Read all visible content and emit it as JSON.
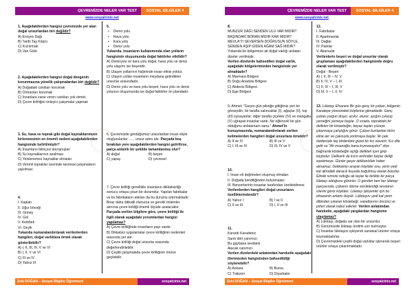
{
  "header": {
    "title": "ÇEVREMİZDE NELER VAR TEST",
    "subject": "SOSYAL BİLGİLER 4",
    "url": "www.sosyalcinix.net"
  },
  "footer": {
    "author": "Zeki DOĞAN – Sosyal Bilgiler Öğretmeni",
    "site": "sosyalcinix.net"
  },
  "colors": {
    "purple": "#8e0f8a",
    "orange": "#f47a20"
  },
  "pages": [
    {
      "questions": [
        {
          "stem": [
            {
              "t": "1. Aşağıdakilerden hangisi çevremizde yer alan doğal unsurlardan biri ",
              "s": "b"
            },
            {
              "t": "değildir?",
              "s": "u"
            }
          ],
          "options": [
            "A) Erciyes Dağı",
            "B) Tarihi Taş Köprü",
            "C) Kızılırmak",
            "D) Van Gölü"
          ]
        },
        {
          "stem": [
            {
              "t": "2. Aşağıdakilerden hangisi doğal dengenin korunmasına yönelik çalışmalardan biri ",
              "s": "b"
            },
            {
              "t": "değildir?",
              "s": "u"
            }
          ],
          "options": [
            "A) Doğadaki canlıları korumak",
            "B) Ormanları korumak",
            "C) İnsanlara zarar veren canlıları yok etmek",
            "D) Çevre kirliliğini önleyici çalışmalar yapmak"
          ]
        },
        {
          "stem": [
            {
              "t": "3. Su, hava ve toprak gibi doğal kaynaklarımızın kirlenmesinin en önemli nedeni aşağıdakilerden hangisinde belirtilmiştir?",
              "s": "b"
            }
          ],
          "options": [
            "A) İnsanların bilinçsiz davranışları",
            "B) Su kaynaklarının azalması",
            "C) Yenilenemez kaynaklar olmaları",
            "D) Verimli topraklar üzerinde tarımsal çalışmaların yapılması"
          ]
        },
        {
          "stem": [
            {
              "t": "4.",
              "s": "b"
            }
          ],
          "pre": [
            "I. Kaplan",
            "II. Uğur böceği",
            "III. Güneş",
            "IV. Göl",
            "V. Kelebek",
            "VI. Geyik"
          ],
          "stem2": [
            {
              "t": "Yukarıda numaralandırılarak verilenlerden hangileri, doğal varlıklara örnek olarak gösterilebilir?",
              "s": "b"
            }
          ],
          "options": [
            "A) I, II, III, IV, V ve VI",
            "B) I, II, V ve VI",
            "C) III ve IV",
            "D) Yalnız III"
          ]
        },
        {
          "stem": [
            {
              "t": "5.",
              "s": "b"
            }
          ],
          "bullets": [
            "Demir yolu",
            "Hava yolu",
            "Kara yolu",
            "Deniz yolu"
          ],
          "stem2": [
            {
              "t": "Yukarıda, insanların kullanımında olan yolların hangisinin oluşumunda doğal faktörler etkilidir?",
              "s": "b"
            }
          ],
          "options": [
            "A) Demiryolu ve kara yolu doğal; hava yolu ve deniz yolu ulaşımı ise beşeridir.",
            "B) Ulaşım yollarının hiçbirinde insan etkisi yoktur.",
            "C) Ulaşım yolları insanların meydana getirdikleri unsurlar arasındadır.",
            "D) Demir yolu ve kara yolu beşeri; hava yolu ve deniz yolunun oluşumunda ise doğal faktörler ön plandadır."
          ]
        },
        {
          "stem": [
            {
              "t": "6. Çevremizde gördüğümüz unsurlardan insan eliyle oluşturulanlar ...... unsur adını alır. ",
              "s": ""
            },
            {
              "t": "Parçada boş bırakılan yere aşağıdakilerden hangisi getirilirse, parça anlamlı bir şekilde tamamlanmış olur?",
              "s": "b"
            }
          ],
          "grid": true,
          "options": [
            "A) doğal",
            "B) beşeri",
            "C) yapay",
            "D) çevresel"
          ]
        },
        {
          "stem": [
            {
              "t": "7. Çevre kirliliği genellikle insanların dikkatsizliği sonucu ortaya çıkan bir durumdur. Yapılan fabrikalar ve bu fabrikaların atıkları da bu durumu artırmaktadır. Biraz daha dikkatli olunursa ve gerekli önlemler alınırsa çevre kirliliği önemli ölçüde azalacaktır. ",
              "s": ""
            },
            {
              "t": "Parçada verilen bilgilere göre, çevre kirliliği ile ilgili olarak aşağıdaki yorumlardan hangisi ",
              "s": "b"
            },
            {
              "t": "yapılamaz?",
              "s": "u"
            }
          ],
          "options": [
            "A) Çevre kirliliğinde insanların payı vardır.",
            "B) Dikkatsiz uygulamalar çevre kirliliğinin nedenleri arasında yer alır.",
            "C) Çevre kirliliği doğal unsurlar arasında değerlendirilebilir.",
            "D) Çeşitli çalışmalarla çevre kirliliğinin önüne geçilebilir."
          ]
        }
      ]
    },
    {
      "questions": [
        {
          "stem": [
            {
              "t": "8.",
              "s": "b"
            }
          ],
          "pre": [
            "MUNZUR DAĞI SENDEN ULU VAR MIDIR?",
            "BAŞINDAKİ BORAN MIDIR KAR MIDIR?",
            "MEVLA'YI SEVERSEN DOĞRUSUN SÖYLE,",
            "SENDEN AŞIP GİDEN AĞAM SAĞ MIDIR?",
            "Yukarıda bir bölgemize ait doğal varlığı anlatan dizeler verilmiştir."
          ],
          "stem2": [
            {
              "t": "Verilen dizelerde bahsedilen doğal varlık, aşağıdaki bölgelerimizden hangisinde yer almaktadır?",
              "s": "b"
            }
          ],
          "options": [
            "A) Marmara Bölgesi",
            "B) Doğu Anadolu Bölgesi",
            "C) Akdeniz Bölgesi",
            "D) Ege Bölgesi"
          ]
        },
        {
          "stem": [
            {
              "t": "9. Ahmet: \"Geçen gün pikniğe gittiğimiz yeri bir görseydin; bir tarafta salıncaklar (I), ağaçlar (II), top (III) oynayanlar; diğer tarafta çiçekler (IV) ve mangalla (V) uğraşan insanlar vardı. Ne eğlenceli bir gün olduğunu anlatamam sana.\" ",
              "s": ""
            },
            {
              "t": "Ahmet'in konuşmasında, numaralandırılarak verilen kelimelerden hangileri doğal unsurlara örnektir?",
              "s": "b"
            }
          ],
          "grid": true,
          "options": [
            "A) II ve IV",
            "B) III ve V",
            "C) I, III ve IV",
            "D) III, IV ve V"
          ]
        },
        {
          "stem": [
            {
              "t": "10.",
              "s": "b"
            }
          ],
          "pre": [
            "I. İnsan eli değmeden oluşmuş olmaları",
            "II. Doğada kendiliğinden bulunmaları",
            "III. Benzerlerinin insanlar tarafından üretilebilmesi"
          ],
          "stem2": [
            {
              "t": "Verilenlerden hangileri doğal unsurların özelliklerindendir?",
              "s": "b"
            }
          ],
          "grid": true,
          "options": [
            "A) Yalnız I",
            "B) I ve II",
            "C) II ve III",
            "D) I, II ve III"
          ]
        },
        {
          "stem": [
            {
              "t": "11.",
              "s": "b"
            }
          ],
          "pre": [
            "Karardı Karadeniz",
            "Sardı dört yanımızı",
            "Bu gaybana sevdalık",
            "Alacak canımızı"
          ],
          "stem2": [
            {
              "t": "Verilen dizelerdeki anlatımdan hareketle aşağıdaki illerimizden hangisinden bahsedildiği söylenebilir?",
              "s": "b"
            }
          ],
          "grid": true,
          "options": [
            "A) Ankara",
            "B) Bursa",
            "C) Trabzon",
            "D) Diyarbakır"
          ]
        },
        {
          "stem": [
            {
              "t": "12.",
              "s": "b"
            }
          ],
          "pre": [
            "I. Fabrikalar",
            "II. Apartmanlar",
            "III. Dağlar",
            "IV. Parklar",
            "V. Akarsular"
          ],
          "stem2": [
            {
              "t": "Verilenlerin beşeri ve doğal unsurlar olarak gruplaması aşağıdakilerden hangisinde doğru olarak verilmiştir?",
              "s": "b"
            }
          ],
          "pre2": [
            "Doğal - Beşeri"
          ],
          "options": [
            "A) I, II, III – IV, V",
            "B) II, IV, V – I, III",
            "C) II, IV – I, III, V",
            "D) III, V – I, II, IV"
          ]
        },
        {
          "stem": [
            {
              "t": "13. ",
              "s": "b"
            },
            {
              "t": "Lületaşı Efsanesi ",
              "s": "i"
            },
            {
              "t": "Bir gün genç bir çoban, bölgenin Karatepe yöresindeki köylerine gitmektedir. Genç çoban yorgun düşer, acıkır, oturur; azığını çıkarıp yemeğini yemeye başlar. O sırada, topraktaki bir delikten bir köstebeğin, beyaz taşları yüzeye çıkarmaya çalıştığını görür. Çoban bunlardan birini eline alır ve çakısıyla yontmaya başlar. İlk çakı darbesiyle taş birdenbire güzel bir kız oluverir. Kız dile gelir ve \"Ah insanoğlu bana kıymasaydın!\" diye bağırarak köstebeğin açtığı delikten içeri girip kaybolur. Delikanlı da kızın ardından başlar deliği eşelemeye. Günler geçer delikanlıdan haber alınamaz. Delikanlıyı arayan köylüler onu, yerin yedi kat altındaki daracık kuyuda boğulmuş olarak bulurlar. Elinde sımsıkı tuttuğu ak taşlar ile birlikte bir parça lületaşı olduğunu görürler. O günden beri her lületaşı parçasında, çobanın ölüme sürüklendiği sevdanın izlerini görür köylüler. Lületaşı işleyenler için bu efsanenin anlamı büyük. Lületaşını yedi kat yerin dibinden çıkaran köstebeği, sanatlarının öncüsü ve pirleri olarak kabul ederler. ",
              "s": "i"
            },
            {
              "t": "Verilen anlatımdan hareketle, aşağıdaki yargılardan hangisine ",
              "s": "b"
            },
            {
              "t": "ulaşılamaz?",
              "s": "u"
            }
          ],
          "options": [
            "A) Lületaşı, doğada var olan bir unsurdur.",
            "B) Günümüzde lületaşı üretimi son bulmuştur.",
            "C) İnsanlar lületaşını işleyerek sanatsal ürünler ortaya koymaktadırlar.",
            "D) Çevremizdeki çeşitli doğal varlıklar işlenerek beşeri ürünler ortaya çıkarılmaktadır."
          ]
        }
      ]
    }
  ]
}
